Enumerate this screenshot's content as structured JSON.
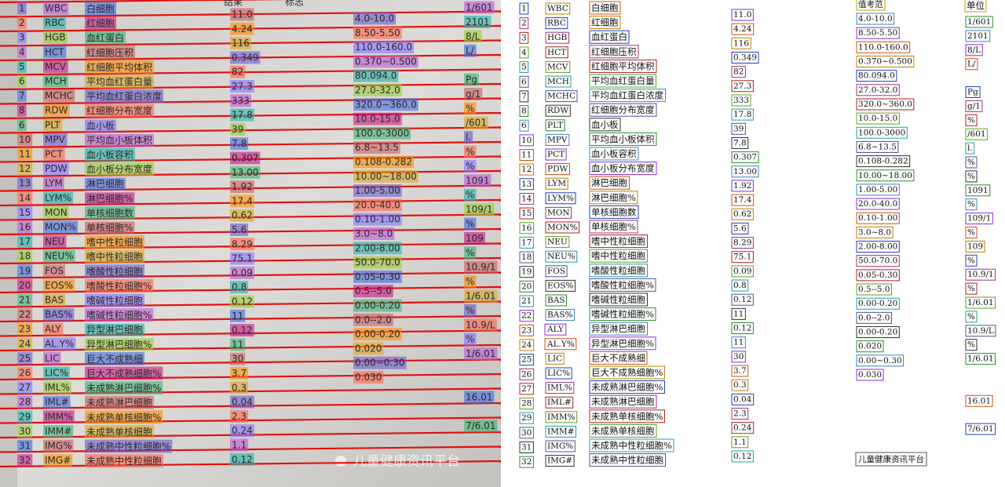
{
  "photo_header": [
    "结果",
    "标志"
  ],
  "header": {
    "range_label": "值考范",
    "unit_label": "单位"
  },
  "rows": [
    {
      "index": "1",
      "code": "WBC",
      "name": "白细胞",
      "result": "11.0",
      "range": "4.0-10.0",
      "unit": "1/601"
    },
    {
      "index": "2",
      "code": "RBC",
      "name": "红细胞",
      "result": "4.24",
      "range": "8.50-5.50",
      "unit": "2101"
    },
    {
      "index": "3",
      "code": "HGB",
      "name": "血红蛋白",
      "result": "116",
      "range": "110.0-160.0",
      "unit": "8/L"
    },
    {
      "index": "4",
      "code": "HCT",
      "name": "红细胞压积",
      "result": "0.349",
      "range": "0.370~0.500",
      "unit": "L/"
    },
    {
      "index": "5",
      "code": "MCV",
      "name": "红细胞平均体积",
      "result": "82",
      "range": "80.094.0"
    },
    {
      "index": "6",
      "code": "MCH",
      "name": "平均血红蛋白量",
      "result": "27.3",
      "range": "27.0-32.0",
      "unit": "Pg"
    },
    {
      "index": "7",
      "code": "MCHC",
      "name": "平均血红蛋白浓度",
      "result": "333",
      "range": "320.0~360.0",
      "unit": "g/1"
    },
    {
      "index": "8",
      "code": "RDW",
      "name": "红细胞分布宽度",
      "result": "17.8",
      "range": "10.0-15.0",
      "unit": "%"
    },
    {
      "index": "6",
      "code": "PLT",
      "name": "血小板",
      "result": "39",
      "range": "100.0-3000",
      "unit": "/601"
    },
    {
      "index": "10",
      "code": "MPV",
      "name": "平均血小板体积",
      "result": "7.8",
      "range": "6.8~13.5",
      "unit": "l."
    },
    {
      "index": "11",
      "code": "PCT",
      "name": "血小板容积",
      "result": "0.307",
      "range": "0.108-0.282",
      "unit": "%"
    },
    {
      "index": "12",
      "code": "PDW",
      "name": "血小板分布宽度",
      "result": "13.00",
      "range": "10.00~18.00",
      "unit": "%"
    },
    {
      "index": "13",
      "code": "LYM",
      "name": "淋巴细胞",
      "result": "1.92",
      "range": "1.00-5.00",
      "unit": "1091"
    },
    {
      "index": "14",
      "code": "LYM%",
      "name": "淋巴细胞%",
      "result": "17.4",
      "range": "20.0-40.0",
      "unit": "%"
    },
    {
      "index": "15",
      "code": "MON",
      "name": "单核细胞数",
      "result": "0.62",
      "range": "0.10-1.00",
      "unit": "109/1"
    },
    {
      "index": "16",
      "code": "MON%",
      "name": "单核细胞%",
      "result": "5.6",
      "range": "3.0~8.0",
      "unit": "%"
    },
    {
      "index": "17",
      "code": "NEU",
      "name": "嗜中性粒细胞",
      "result": "8.29",
      "range": "2.00-8.00",
      "unit": "109"
    },
    {
      "index": "18",
      "code": "NEU%",
      "name": "嗜中性粒细胞",
      "result": "75.1",
      "range": "50.0-70.0",
      "unit": "%"
    },
    {
      "index": "19",
      "code": "FOS",
      "name": "嗜酸性粒细胞",
      "result": "0.09",
      "range": "0.05-0.30",
      "unit": "10.9/1"
    },
    {
      "index": "20",
      "code": "EOS%",
      "name": "嗜酸性粒细胞%",
      "result": "0.8",
      "range": "0.5--5.0",
      "unit": "%"
    },
    {
      "index": "21",
      "code": "BAS",
      "name": "嗜碱性粒细胞",
      "result": "0.12",
      "range": "0.00-0.20",
      "unit": "1/6.01"
    },
    {
      "index": "22",
      "code": "BAS%",
      "name": "嗜碱性粒细胞%",
      "result": "11",
      "range": "0.0--2.0",
      "unit": "%"
    },
    {
      "index": "23",
      "code": "ALY",
      "name": "异型淋巴细胞",
      "result": "0.12",
      "range": "0.00-0.20",
      "unit": "10.9/L"
    },
    {
      "index": "24",
      "code": "AL.Y%",
      "name": "异型淋巴细胞%",
      "result": "11",
      "range": "0.020",
      "unit": "%"
    },
    {
      "index": "25",
      "code": "LIC",
      "name": "巨大不成熟细",
      "result": "30",
      "range": "0.00~0.30",
      "unit": "1/6.01"
    },
    {
      "index": "26",
      "code": "LIC%",
      "name": "巨大不成熟细胞%",
      "result": "3.7",
      "range": "0.030"
    },
    {
      "index": "27",
      "code": "IML%",
      "name": "未成熟淋巴细胞%",
      "result": "0.3"
    },
    {
      "index": "28",
      "code": "IML#",
      "name": "未成熟淋巴细胞",
      "result": "0.04",
      "unit": "16.01"
    },
    {
      "index": "29",
      "code": "IMM%",
      "name": "未成熟单核细胞%",
      "result": "2.3"
    },
    {
      "index": "30",
      "code": "IMM#",
      "name": "未成熟单核细胞",
      "result": "0.24",
      "unit": "7/6.01"
    },
    {
      "index": "31",
      "code": "IMG%",
      "name": "未成熟中性粒细胞%",
      "result": "1.1"
    },
    {
      "index": "32",
      "code": "IMG#",
      "name": "未成熟中性粒细胞",
      "result": "0.12"
    }
  ],
  "watermark": "儿童健康资讯平台"
}
